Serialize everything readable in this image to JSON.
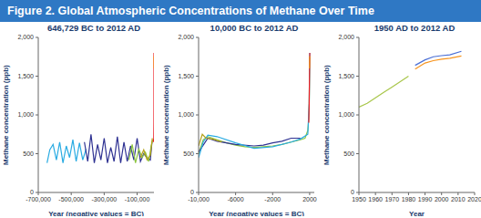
{
  "title": "Figure 2. Global Atmospheric Concentrations of Methane Over Time",
  "chart_data": [
    {
      "type": "line",
      "title": "646,729 BC to 2012 AD",
      "x_label": "Year (negative values = BC)",
      "y_label": "Methane concentration (ppb)",
      "xlim": [
        -700000,
        2012
      ],
      "xticks": [
        {
          "value": -700000,
          "label": "-700,000"
        },
        {
          "value": -500000,
          "label": "-500,000"
        },
        {
          "value": -300000,
          "label": "-300,000"
        },
        {
          "value": -100000,
          "label": "-100,000"
        }
      ],
      "ylim": [
        0,
        2000
      ],
      "yticks": [
        0,
        500,
        {
          "value": 1000,
          "label": "1,000"
        },
        {
          "value": 1500,
          "label": "1,500"
        },
        {
          "value": 2000,
          "label": "2,000"
        }
      ],
      "grid": false,
      "series": [
        {
          "color": "#29abe2",
          "x": [
            -646729,
            -630000,
            -610000,
            -590000,
            -570000,
            -550000,
            -530000,
            -510000,
            -490000,
            -470000,
            -450000,
            -430000,
            -410000
          ],
          "values": [
            380,
            550,
            620,
            420,
            650,
            380,
            600,
            450,
            680,
            400,
            640,
            420,
            560
          ]
        },
        {
          "color": "#2e3192",
          "x": [
            -420000,
            -400000,
            -380000,
            -360000,
            -340000,
            -320000,
            -300000,
            -280000,
            -260000,
            -240000,
            -220000,
            -200000,
            -180000,
            -160000,
            -140000,
            -120000,
            -100000,
            -80000,
            -60000,
            -40000,
            -20000,
            -10000
          ],
          "values": [
            650,
            400,
            750,
            380,
            620,
            420,
            700,
            380,
            580,
            400,
            720,
            380,
            650,
            400,
            600,
            420,
            700,
            400,
            500,
            450,
            420,
            650
          ]
        },
        {
          "color": "#8dc63f",
          "x": [
            -150000,
            -130000,
            -110000,
            -90000,
            -70000,
            -50000,
            -30000,
            -15000,
            -5000
          ],
          "values": [
            420,
            620,
            380,
            560,
            450,
            520,
            400,
            600,
            680
          ]
        },
        {
          "color": "#b5a31b",
          "x": [
            -80000,
            -60000,
            -40000,
            -20000,
            -8000
          ],
          "values": [
            450,
            550,
            420,
            480,
            700
          ]
        },
        {
          "color": "#ed1c24",
          "x": [
            -2000,
            0,
            1000,
            1800,
            1950,
            2012
          ],
          "values": [
            650,
            680,
            700,
            900,
            1200,
            1800
          ]
        },
        {
          "color": "#f7941d",
          "x": [
            1984,
            2012
          ],
          "values": [
            1600,
            1760
          ]
        }
      ]
    },
    {
      "type": "line",
      "title": "10,000 BC to 2012 AD",
      "x_label": "Year (negative values = BC)",
      "y_label": "Methane concentration (ppb)",
      "xlim": [
        -10000,
        2500
      ],
      "xticks": [
        {
          "value": -10000,
          "label": "-10,000"
        },
        -6000,
        -2000,
        2000
      ],
      "ylim": [
        0,
        2000
      ],
      "yticks": [
        0,
        500,
        {
          "value": 1000,
          "label": "1,000"
        },
        {
          "value": 1500,
          "label": "1,500"
        },
        {
          "value": 2000,
          "label": "2,000"
        }
      ],
      "grid": false,
      "series": [
        {
          "color": "#8dc63f",
          "x": [
            -10000,
            -9500,
            -9000,
            -8500,
            -8000,
            -7000,
            -6000,
            -5000,
            -4000,
            -3000,
            -2000,
            -1000,
            0,
            1000,
            1500,
            1800,
            1900,
            1950,
            2000
          ],
          "values": [
            500,
            680,
            720,
            700,
            680,
            640,
            610,
            590,
            580,
            590,
            600,
            620,
            650,
            680,
            700,
            800,
            950,
            1150,
            1750
          ]
        },
        {
          "color": "#2e3192",
          "x": [
            -10000,
            -9000,
            -8000,
            -6000,
            -4000,
            -3000,
            -2000,
            -1000,
            0,
            1000
          ],
          "values": [
            520,
            700,
            660,
            620,
            600,
            610,
            640,
            660,
            700,
            700
          ]
        },
        {
          "color": "#29abe2",
          "x": [
            -10000,
            -9500,
            -9000,
            -8000,
            -6000,
            -4000,
            -2000,
            0,
            1000,
            1800,
            1950,
            2000,
            2012
          ],
          "values": [
            450,
            650,
            740,
            720,
            640,
            570,
            590,
            650,
            690,
            750,
            1150,
            1700,
            1800
          ]
        },
        {
          "color": "#b5a31b",
          "x": [
            -10000,
            -9600,
            -9200,
            -8500,
            -7500
          ],
          "values": [
            600,
            750,
            700,
            690,
            650
          ]
        },
        {
          "color": "#ed1c24",
          "x": [
            1900,
            1950,
            1980,
            2012
          ],
          "values": [
            900,
            1150,
            1500,
            1800
          ]
        },
        {
          "color": "#f7941d",
          "x": [
            1984,
            2012
          ],
          "values": [
            1600,
            1760
          ]
        }
      ]
    },
    {
      "type": "line",
      "title": "1950 AD to 2012 AD",
      "x_label": "Year",
      "y_label": "Methane concentration (ppb)",
      "xlim": [
        1950,
        2020
      ],
      "xticks": [
        1950,
        1960,
        1970,
        1980,
        1990,
        2000,
        2010,
        2020
      ],
      "ylim": [
        0,
        2000
      ],
      "yticks": [
        0,
        500,
        {
          "value": 1000,
          "label": "1,000"
        },
        {
          "value": 1500,
          "label": "1,500"
        },
        {
          "value": 2000,
          "label": "2,000"
        }
      ],
      "grid": false,
      "series": [
        {
          "color": "#a8c64a",
          "x": [
            1950,
            1955,
            1960,
            1965,
            1970,
            1975,
            1980
          ],
          "values": [
            1100,
            1150,
            1220,
            1290,
            1360,
            1430,
            1500
          ]
        },
        {
          "color": "#4a6fd6",
          "x": [
            1984,
            1990,
            1995,
            2000,
            2005,
            2012
          ],
          "values": [
            1640,
            1710,
            1750,
            1765,
            1775,
            1820
          ]
        },
        {
          "color": "#f7941d",
          "x": [
            1984,
            1990,
            1995,
            2000,
            2005,
            2012
          ],
          "values": [
            1590,
            1670,
            1700,
            1720,
            1730,
            1760
          ]
        }
      ]
    }
  ]
}
